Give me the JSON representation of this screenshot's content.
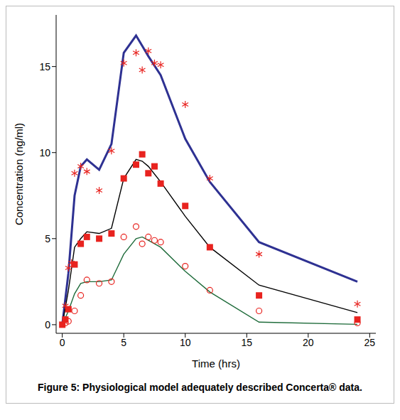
{
  "chart_data": {
    "type": "line",
    "caption": "Figure 5: Physiological model adequately described Concerta® data.",
    "x_label": "Time (hrs)",
    "y_label": "Concentration (ng/ml)",
    "xlim": [
      -0.5,
      25.5
    ],
    "xticks": [
      0,
      5,
      10,
      15,
      20,
      25
    ],
    "ylim": [
      -0.5,
      18
    ],
    "yticks": [
      0,
      5,
      10,
      15
    ],
    "grid": false,
    "series": [
      {
        "type": "line",
        "color": "#2e3192",
        "line_style": "thick",
        "x": [
          0,
          0.5,
          1,
          1.5,
          2,
          3,
          4,
          5,
          6,
          6.5,
          7,
          8,
          10,
          12,
          16,
          24
        ],
        "values": [
          0,
          3,
          7.5,
          9.2,
          9.6,
          9.0,
          10.5,
          15.8,
          16.8,
          16.2,
          15.6,
          14.5,
          10.8,
          8.3,
          4.8,
          2.5
        ]
      },
      {
        "type": "line",
        "color": "#000000",
        "line_style": "solid",
        "x": [
          0,
          0.5,
          1,
          1.5,
          2,
          3,
          4,
          5,
          6,
          6.5,
          7,
          8,
          10,
          12,
          16,
          24
        ],
        "values": [
          0,
          2,
          4.5,
          5.0,
          5.4,
          5.3,
          5.6,
          8.5,
          9.6,
          9.5,
          9.2,
          8.3,
          6.3,
          4.5,
          2.3,
          0.7
        ]
      },
      {
        "type": "line",
        "color": "#1e6b3a",
        "line_style": "solid",
        "x": [
          0,
          0.5,
          1,
          1.5,
          2,
          3,
          4,
          5,
          6,
          6.5,
          7,
          8,
          10,
          12,
          16,
          24
        ],
        "values": [
          0,
          0.8,
          1.8,
          2.4,
          2.5,
          2.5,
          2.6,
          4.1,
          5.0,
          5.1,
          4.9,
          4.5,
          3.1,
          1.9,
          0.15,
          0.02
        ]
      },
      {
        "type": "scatter",
        "color": "#e8231f",
        "marker": "asterisk",
        "x": [
          0.25,
          0.5,
          0.75,
          1,
          1.5,
          2,
          3,
          4,
          5,
          6,
          6.5,
          7,
          7.5,
          8,
          10,
          12,
          16,
          24
        ],
        "values": [
          1.1,
          3.3,
          3.6,
          8.8,
          9.2,
          8.9,
          7.8,
          10.1,
          15.2,
          15.8,
          14.8,
          15.9,
          15.2,
          15.1,
          12.8,
          8.5,
          4.1,
          1.2
        ]
      },
      {
        "type": "scatter",
        "color": "#e8231f",
        "marker": "square",
        "x": [
          0,
          0.25,
          0.5,
          1,
          1.5,
          2,
          3,
          4,
          5,
          6,
          6.5,
          7,
          7.5,
          8,
          10,
          12,
          16,
          24
        ],
        "values": [
          0,
          0.3,
          0.9,
          3.5,
          4.7,
          5.1,
          5.0,
          5.3,
          8.5,
          9.3,
          9.9,
          8.8,
          9.2,
          8.2,
          6.9,
          4.5,
          1.7,
          0.3
        ]
      },
      {
        "type": "scatter",
        "color": "#e8231f",
        "marker": "circle_open",
        "x": [
          0.25,
          0.5,
          1,
          1.5,
          2,
          3,
          4,
          5,
          6,
          6.5,
          7,
          7.5,
          8,
          10,
          12,
          16,
          24
        ],
        "values": [
          0.1,
          0.2,
          0.8,
          1.7,
          2.6,
          2.4,
          2.5,
          5.1,
          5.7,
          4.7,
          5.1,
          4.9,
          4.8,
          3.4,
          2.0,
          0.8,
          0.1
        ]
      }
    ]
  }
}
